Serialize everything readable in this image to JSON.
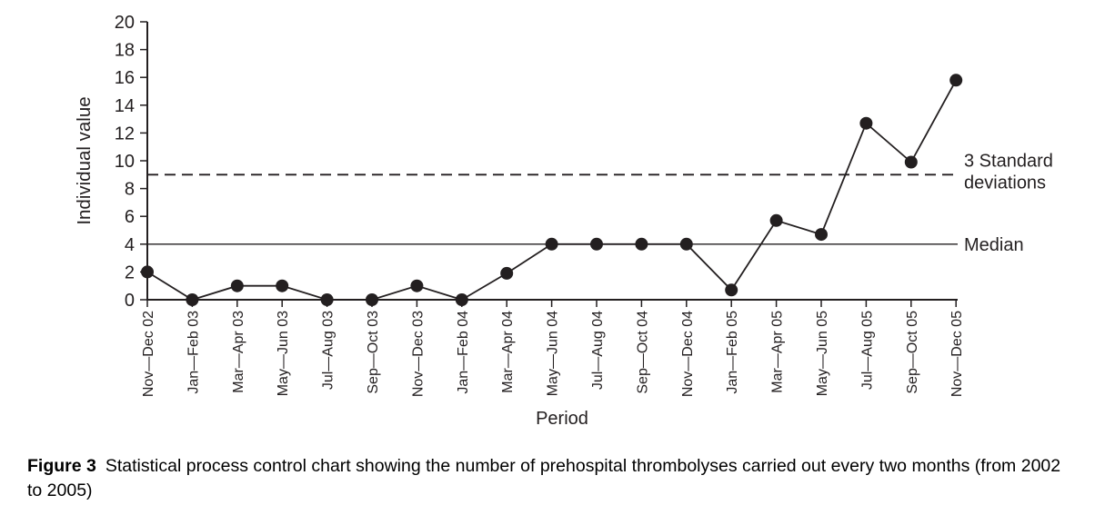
{
  "figure": {
    "caption_label": "Figure 3",
    "caption_text": "Statistical process control chart showing the number of prehospital thrombolyses carried out every two months (from 2002 to 2005)"
  },
  "chart_data": {
    "type": "line",
    "title": "",
    "xlabel": "Period",
    "ylabel": "Individual value",
    "ylim": [
      0,
      20
    ],
    "yticks": [
      0,
      2,
      4,
      6,
      8,
      10,
      12,
      14,
      16,
      18,
      20
    ],
    "grid": false,
    "legend": "none",
    "marker": "filled-circle",
    "categories": [
      "Nov—Dec 02",
      "Jan—Feb 03",
      "Mar—Apr 03",
      "May—Jun 03",
      "Jul—Aug 03",
      "Sep—Oct 03",
      "Nov—Dec 03",
      "Jan—Feb 04",
      "Mar—Apr 04",
      "May—Jun 04",
      "Jul—Aug 04",
      "Sep—Oct 04",
      "Nov—Dec 04",
      "Jan—Feb 05",
      "Mar—Apr 05",
      "May—Jun 05",
      "Jul—Aug 05",
      "Sep—Oct 05",
      "Nov—Dec 05"
    ],
    "series": [
      {
        "values": [
          2,
          0,
          1,
          1,
          0,
          0,
          1,
          0,
          1.9,
          4,
          4,
          4,
          4,
          0.7,
          5.7,
          4.7,
          12.7,
          9.9,
          15.8
        ]
      }
    ],
    "reference_lines": [
      {
        "label": "3 Standard deviations",
        "label_lines": [
          "3 Standard",
          "deviations"
        ],
        "value": 9,
        "style": "dashed"
      },
      {
        "label": "Median",
        "label_lines": [
          "Median"
        ],
        "value": 4,
        "style": "solid"
      }
    ],
    "colors": {
      "ink": "#231f20",
      "background": "#ffffff"
    }
  }
}
